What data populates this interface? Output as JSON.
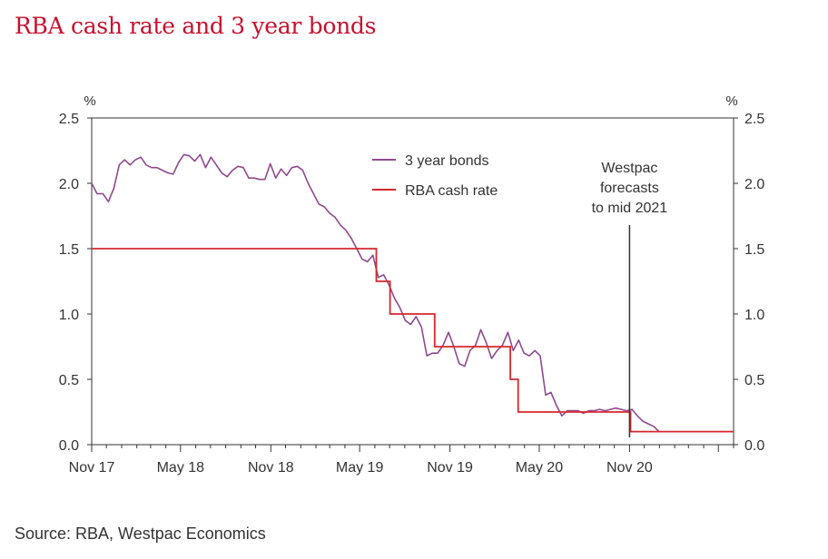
{
  "chart_data": {
    "type": "line",
    "title": "RBA cash rate and 3 year bonds",
    "source": "Source: RBA, Westpac Economics",
    "y_unit_left": "%",
    "y_unit_right": "%",
    "ylim": [
      0,
      2.5
    ],
    "y_ticks": [
      0.0,
      0.5,
      1.0,
      1.5,
      2.0,
      2.5
    ],
    "y_tick_labels": [
      "0.0",
      "0.5",
      "1.0",
      "1.5",
      "2.0",
      "2.5"
    ],
    "x_ticks": [
      "Nov 17",
      "May 18",
      "Nov 18",
      "May 19",
      "Nov 19",
      "May 20",
      "Nov 20"
    ],
    "x_range": [
      "2017-11",
      "2021-06"
    ],
    "legend": [
      {
        "name": "3 year bonds",
        "color": "#8e4a8e"
      },
      {
        "name": "RBA cash rate",
        "color": "#d6282f"
      }
    ],
    "legend_position": "top-center",
    "annotation": {
      "lines": [
        "Westpac",
        "forecasts",
        "to mid 2021"
      ],
      "at": "2020-11"
    },
    "series": [
      {
        "name": "3 year bonds",
        "color": "#8e4a8e",
        "points": [
          [
            "2017-11-01",
            2.0
          ],
          [
            "2017-11-12",
            1.92
          ],
          [
            "2017-11-24",
            1.92
          ],
          [
            "2017-12-05",
            1.86
          ],
          [
            "2017-12-16",
            1.96
          ],
          [
            "2017-12-27",
            2.14
          ],
          [
            "2018-01-07",
            2.18
          ],
          [
            "2018-01-18",
            2.14
          ],
          [
            "2018-01-29",
            2.18
          ],
          [
            "2018-02-09",
            2.2
          ],
          [
            "2018-02-20",
            2.14
          ],
          [
            "2018-03-03",
            2.12
          ],
          [
            "2018-03-14",
            2.12
          ],
          [
            "2018-03-25",
            2.1
          ],
          [
            "2018-04-05",
            2.08
          ],
          [
            "2018-04-16",
            2.07
          ],
          [
            "2018-04-27",
            2.16
          ],
          [
            "2018-05-08",
            2.22
          ],
          [
            "2018-05-19",
            2.21
          ],
          [
            "2018-05-30",
            2.17
          ],
          [
            "2018-06-10",
            2.22
          ],
          [
            "2018-06-21",
            2.12
          ],
          [
            "2018-07-02",
            2.2
          ],
          [
            "2018-07-13",
            2.14
          ],
          [
            "2018-07-24",
            2.08
          ],
          [
            "2018-08-04",
            2.05
          ],
          [
            "2018-08-15",
            2.1
          ],
          [
            "2018-08-26",
            2.13
          ],
          [
            "2018-09-06",
            2.12
          ],
          [
            "2018-09-17",
            2.04
          ],
          [
            "2018-09-28",
            2.04
          ],
          [
            "2018-10-09",
            2.03
          ],
          [
            "2018-10-20",
            2.03
          ],
          [
            "2018-10-31",
            2.15
          ],
          [
            "2018-11-11",
            2.04
          ],
          [
            "2018-11-22",
            2.11
          ],
          [
            "2018-12-03",
            2.06
          ],
          [
            "2018-12-14",
            2.12
          ],
          [
            "2018-12-25",
            2.13
          ],
          [
            "2019-01-05",
            2.1
          ],
          [
            "2019-01-16",
            2.0
          ],
          [
            "2019-01-27",
            1.92
          ],
          [
            "2019-02-07",
            1.84
          ],
          [
            "2019-02-18",
            1.82
          ],
          [
            "2019-03-01",
            1.77
          ],
          [
            "2019-03-12",
            1.74
          ],
          [
            "2019-03-23",
            1.68
          ],
          [
            "2019-04-03",
            1.64
          ],
          [
            "2019-04-14",
            1.58
          ],
          [
            "2019-04-25",
            1.5
          ],
          [
            "2019-05-06",
            1.42
          ],
          [
            "2019-05-17",
            1.4
          ],
          [
            "2019-05-28",
            1.45
          ],
          [
            "2019-06-08",
            1.28
          ],
          [
            "2019-06-19",
            1.3
          ],
          [
            "2019-06-30",
            1.22
          ],
          [
            "2019-07-11",
            1.12
          ],
          [
            "2019-07-22",
            1.05
          ],
          [
            "2019-08-02",
            0.95
          ],
          [
            "2019-08-13",
            0.92
          ],
          [
            "2019-08-24",
            0.98
          ],
          [
            "2019-09-04",
            0.9
          ],
          [
            "2019-09-15",
            0.68
          ],
          [
            "2019-09-26",
            0.7
          ],
          [
            "2019-10-07",
            0.7
          ],
          [
            "2019-10-18",
            0.76
          ],
          [
            "2019-10-29",
            0.86
          ],
          [
            "2019-11-09",
            0.75
          ],
          [
            "2019-11-20",
            0.62
          ],
          [
            "2019-12-01",
            0.6
          ],
          [
            "2019-12-12",
            0.72
          ],
          [
            "2019-12-23",
            0.76
          ],
          [
            "2020-01-03",
            0.88
          ],
          [
            "2020-01-14",
            0.78
          ],
          [
            "2020-01-25",
            0.66
          ],
          [
            "2020-02-05",
            0.72
          ],
          [
            "2020-02-16",
            0.76
          ],
          [
            "2020-02-27",
            0.86
          ],
          [
            "2020-03-09",
            0.72
          ],
          [
            "2020-03-20",
            0.8
          ],
          [
            "2020-03-31",
            0.7
          ],
          [
            "2020-04-11",
            0.68
          ],
          [
            "2020-04-22",
            0.72
          ],
          [
            "2020-05-03",
            0.68
          ],
          [
            "2020-05-14",
            0.38
          ],
          [
            "2020-05-25",
            0.4
          ],
          [
            "2020-06-05",
            0.3
          ],
          [
            "2020-06-16",
            0.22
          ],
          [
            "2020-06-27",
            0.26
          ],
          [
            "2020-07-08",
            0.26
          ],
          [
            "2020-07-19",
            0.26
          ],
          [
            "2020-07-30",
            0.24
          ],
          [
            "2020-08-10",
            0.26
          ],
          [
            "2020-08-21",
            0.26
          ],
          [
            "2020-09-01",
            0.27
          ],
          [
            "2020-09-12",
            0.26
          ],
          [
            "2020-09-23",
            0.27
          ],
          [
            "2020-10-04",
            0.28
          ],
          [
            "2020-10-15",
            0.27
          ],
          [
            "2020-10-26",
            0.26
          ],
          [
            "2020-11-06",
            0.27
          ],
          [
            "2020-11-17",
            0.22
          ],
          [
            "2020-11-28",
            0.18
          ],
          [
            "2020-12-09",
            0.16
          ],
          [
            "2020-12-20",
            0.14
          ],
          [
            "2020-12-31",
            0.1
          ]
        ]
      },
      {
        "name": "RBA cash rate",
        "color": "#d6282f",
        "step_points": [
          [
            "2017-11-01",
            1.5
          ],
          [
            "2019-06-04",
            1.25
          ],
          [
            "2019-07-02",
            1.0
          ],
          [
            "2019-10-01",
            0.75
          ],
          [
            "2020-03-03",
            0.5
          ],
          [
            "2020-03-19",
            0.25
          ],
          [
            "2020-11-03",
            0.1
          ],
          [
            "2021-06-01",
            0.1
          ]
        ]
      }
    ]
  }
}
